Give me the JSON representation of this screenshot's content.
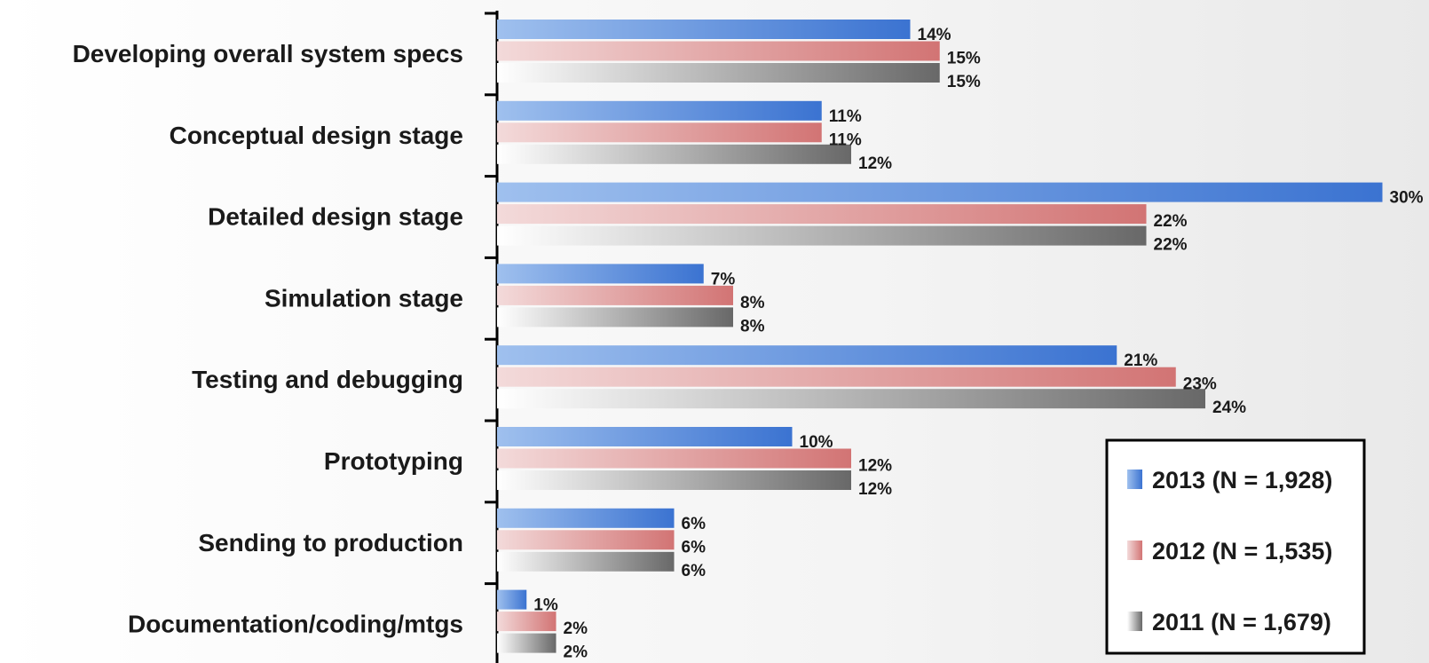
{
  "chart_data": {
    "type": "bar",
    "orientation": "horizontal",
    "title": "",
    "xlabel": "",
    "ylabel": "",
    "xlim": [
      0,
      30
    ],
    "grid": false,
    "legend_position": "bottom-right",
    "value_suffix": "%",
    "categories": [
      "Developing overall system specs",
      "Conceptual design stage",
      "Detailed design stage",
      "Simulation stage",
      "Testing and debugging",
      "Prototyping",
      "Sending to production",
      "Documentation/coding/mtgs"
    ],
    "series": [
      {
        "name": "2013 (N = 1,928)",
        "values": [
          14,
          11,
          30,
          7,
          21,
          10,
          6,
          1
        ],
        "color": "#3b73d1"
      },
      {
        "name": "2012 (N = 1,535)",
        "values": [
          15,
          11,
          22,
          8,
          23,
          12,
          6,
          2
        ],
        "color": "#d67a7a"
      },
      {
        "name": "2011 (N = 1,679)",
        "values": [
          15,
          12,
          22,
          8,
          24,
          12,
          6,
          2
        ],
        "color": "#6f6f6f"
      }
    ]
  }
}
